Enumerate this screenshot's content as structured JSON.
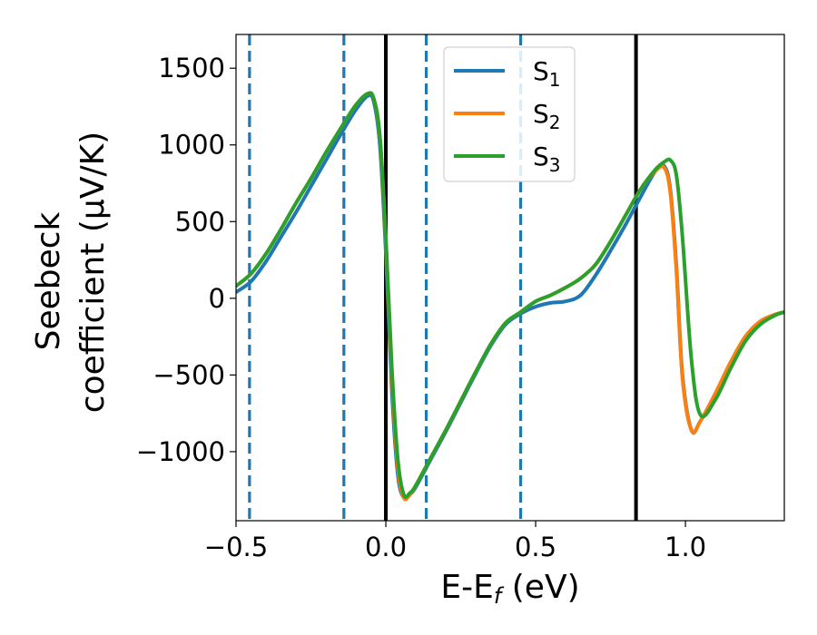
{
  "chart_data": {
    "type": "line",
    "title": "",
    "xlabel": "E-E",
    "xlabel_sub": "f",
    "xlabel_unit": " (eV)",
    "ylabel_line1": "Seebeck",
    "ylabel_line2": "coefficient  (μV/K)",
    "xlim": [
      -0.5,
      1.33
    ],
    "ylim": [
      -1450,
      1720
    ],
    "xticks": [
      -0.5,
      0.0,
      0.5,
      1.0
    ],
    "xtick_labels": [
      "−0.5",
      "0.0",
      "0.5",
      "1.0"
    ],
    "yticks": [
      -1000,
      -500,
      0,
      500,
      1000,
      1500
    ],
    "ytick_labels": [
      "−1000",
      "−500",
      "0",
      "500",
      "1000",
      "1500"
    ],
    "legend_position": "top-center",
    "vlines": [
      {
        "x": -0.455,
        "style": "dashed",
        "color": "#1f77b4"
      },
      {
        "x": -0.14,
        "style": "dashed",
        "color": "#1f77b4"
      },
      {
        "x": 0.135,
        "style": "dashed",
        "color": "#1f77b4"
      },
      {
        "x": 0.45,
        "style": "dashed",
        "color": "#1f77b4"
      },
      {
        "x": 0.0,
        "style": "solid",
        "color": "#000000"
      },
      {
        "x": 0.835,
        "style": "solid",
        "color": "#000000"
      }
    ],
    "series": [
      {
        "name": "S",
        "sub": "1",
        "color": "#1f77b4",
        "x": [
          -0.5,
          -0.45,
          -0.4,
          -0.35,
          -0.3,
          -0.25,
          -0.2,
          -0.15,
          -0.1,
          -0.06,
          -0.04,
          -0.02,
          0.0,
          0.02,
          0.04,
          0.06,
          0.08,
          0.1,
          0.15,
          0.2,
          0.25,
          0.3,
          0.35,
          0.4,
          0.45,
          0.5,
          0.55,
          0.6,
          0.65,
          0.7,
          0.75,
          0.8,
          0.85,
          0.9,
          0.93,
          0.95,
          0.97,
          0.99,
          1.02,
          1.05,
          1.1,
          1.15,
          1.2,
          1.25,
          1.3,
          1.33
        ],
        "y": [
          40,
          110,
          240,
          400,
          560,
          730,
          900,
          1070,
          1230,
          1320,
          1280,
          1000,
          300,
          -600,
          -1150,
          -1300,
          -1280,
          -1230,
          -1050,
          -870,
          -680,
          -490,
          -310,
          -170,
          -100,
          -55,
          -30,
          -20,
          20,
          150,
          310,
          480,
          660,
          830,
          860,
          700,
          200,
          -500,
          -860,
          -800,
          -620,
          -420,
          -250,
          -150,
          -105,
          -90
        ]
      },
      {
        "name": "S",
        "sub": "2",
        "color": "#ff7f0e",
        "x": [
          -0.5,
          -0.45,
          -0.4,
          -0.35,
          -0.3,
          -0.25,
          -0.2,
          -0.15,
          -0.1,
          -0.06,
          -0.04,
          -0.02,
          0.0,
          0.02,
          0.04,
          0.06,
          0.08,
          0.1,
          0.15,
          0.2,
          0.25,
          0.3,
          0.35,
          0.4,
          0.45,
          0.5,
          0.55,
          0.6,
          0.65,
          0.7,
          0.75,
          0.8,
          0.85,
          0.9,
          0.93,
          0.95,
          0.97,
          0.99,
          1.02,
          1.05,
          1.1,
          1.15,
          1.2,
          1.25,
          1.3,
          1.33
        ],
        "y": [
          80,
          160,
          290,
          450,
          620,
          780,
          950,
          1110,
          1260,
          1335,
          1300,
          1050,
          380,
          -500,
          -1100,
          -1300,
          -1280,
          -1220,
          -1040,
          -860,
          -670,
          -480,
          -300,
          -160,
          -90,
          -20,
          20,
          70,
          130,
          220,
          370,
          540,
          710,
          830,
          850,
          680,
          170,
          -520,
          -860,
          -800,
          -620,
          -420,
          -250,
          -150,
          -105,
          -90
        ]
      },
      {
        "name": "S",
        "sub": "3",
        "color": "#2ca02c",
        "x": [
          -0.5,
          -0.45,
          -0.4,
          -0.35,
          -0.3,
          -0.25,
          -0.2,
          -0.15,
          -0.1,
          -0.06,
          -0.04,
          -0.02,
          0.0,
          0.02,
          0.04,
          0.06,
          0.08,
          0.1,
          0.15,
          0.2,
          0.25,
          0.3,
          0.35,
          0.4,
          0.45,
          0.5,
          0.55,
          0.6,
          0.65,
          0.7,
          0.75,
          0.8,
          0.85,
          0.9,
          0.93,
          0.95,
          0.97,
          0.99,
          1.02,
          1.05,
          1.1,
          1.15,
          1.2,
          1.25,
          1.3,
          1.33
        ],
        "y": [
          80,
          160,
          290,
          450,
          620,
          780,
          950,
          1110,
          1260,
          1335,
          1300,
          1060,
          400,
          -450,
          -1050,
          -1280,
          -1270,
          -1220,
          -1040,
          -860,
          -670,
          -480,
          -300,
          -160,
          -90,
          -20,
          20,
          70,
          130,
          220,
          370,
          540,
          710,
          840,
          890,
          900,
          800,
          400,
          -400,
          -760,
          -660,
          -460,
          -280,
          -170,
          -110,
          -90
        ]
      }
    ]
  }
}
